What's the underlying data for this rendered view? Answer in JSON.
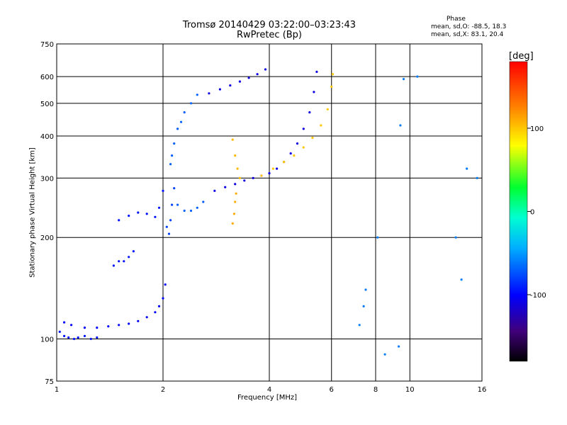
{
  "chart_data": {
    "type": "scatter",
    "title": "Tromsø 20140429 03:22:00–03:23:43",
    "subtitle": "RwPretec (Bp)",
    "xlabel": "Frequency [MHz]",
    "ylabel": "Stationary phase Virtual Height [km]",
    "xscale": "log",
    "yscale": "log",
    "xlim": [
      1,
      16
    ],
    "ylim": [
      75,
      750
    ],
    "xticks": [
      1,
      2,
      4,
      6,
      8,
      10,
      16
    ],
    "yticks": [
      75,
      100,
      200,
      300,
      400,
      500,
      600,
      750
    ],
    "grid": true,
    "phase_stats": {
      "header": "Phase",
      "o_line": "mean, sd,O: -88.5, 18.3",
      "x_line": "mean, sd,X:  83.1, 20.4"
    },
    "colorbar": {
      "label": "[deg]",
      "ticks": [
        100,
        0,
        -100
      ],
      "range": [
        -180,
        180
      ]
    },
    "series": [
      {
        "points": [
          [
            1.02,
            105
          ],
          [
            1.05,
            102
          ],
          [
            1.08,
            101
          ],
          [
            1.12,
            100
          ],
          [
            1.15,
            101
          ],
          [
            1.2,
            102
          ],
          [
            1.25,
            100
          ],
          [
            1.3,
            101
          ]
        ],
        "phase": -95
      },
      {
        "points": [
          [
            1.05,
            112
          ],
          [
            1.1,
            110
          ],
          [
            1.2,
            108
          ],
          [
            1.3,
            108
          ],
          [
            1.4,
            109
          ],
          [
            1.5,
            110
          ],
          [
            1.6,
            111
          ],
          [
            1.7,
            113
          ],
          [
            1.8,
            116
          ],
          [
            1.9,
            120
          ],
          [
            1.95,
            125
          ],
          [
            2.0,
            132
          ],
          [
            2.03,
            145
          ]
        ],
        "phase": -100
      },
      {
        "points": [
          [
            1.45,
            165
          ],
          [
            1.5,
            170
          ],
          [
            1.55,
            170
          ],
          [
            1.6,
            175
          ],
          [
            1.65,
            182
          ]
        ],
        "phase": -95
      },
      {
        "points": [
          [
            1.5,
            225
          ],
          [
            1.6,
            232
          ],
          [
            1.7,
            237
          ],
          [
            1.8,
            235
          ],
          [
            1.9,
            230
          ],
          [
            1.95,
            245
          ],
          [
            2.0,
            275
          ]
        ],
        "phase": -95
      },
      {
        "points": [
          [
            2.05,
            215
          ],
          [
            2.08,
            205
          ],
          [
            2.1,
            225
          ],
          [
            2.12,
            250
          ],
          [
            2.15,
            280
          ]
        ],
        "phase": -80
      },
      {
        "points": [
          [
            2.2,
            250
          ],
          [
            2.3,
            240
          ],
          [
            2.4,
            240
          ],
          [
            2.5,
            245
          ],
          [
            2.6,
            255
          ]
        ],
        "phase": -70
      },
      {
        "points": [
          [
            2.1,
            330
          ],
          [
            2.12,
            350
          ],
          [
            2.15,
            380
          ],
          [
            2.2,
            420
          ],
          [
            2.25,
            440
          ],
          [
            2.3,
            470
          ],
          [
            2.4,
            500
          ],
          [
            2.5,
            530
          ]
        ],
        "phase": -70
      },
      {
        "points": [
          [
            2.7,
            535
          ],
          [
            2.9,
            550
          ],
          [
            3.1,
            565
          ],
          [
            3.3,
            580
          ],
          [
            3.5,
            595
          ],
          [
            3.7,
            610
          ],
          [
            3.9,
            630
          ]
        ],
        "phase": -110
      },
      {
        "points": [
          [
            2.8,
            275
          ],
          [
            3.0,
            282
          ],
          [
            3.2,
            288
          ],
          [
            3.4,
            295
          ],
          [
            3.6,
            300
          ],
          [
            3.8,
            305
          ],
          [
            4.0,
            310
          ],
          [
            4.2,
            320
          ],
          [
            4.4,
            335
          ],
          [
            4.6,
            355
          ],
          [
            4.8,
            380
          ],
          [
            5.0,
            420
          ],
          [
            5.2,
            470
          ],
          [
            5.35,
            540
          ],
          [
            5.45,
            620
          ]
        ],
        "phase": -110
      },
      {
        "points": [
          [
            3.8,
            305
          ],
          [
            4.1,
            320
          ],
          [
            4.4,
            335
          ],
          [
            4.7,
            350
          ],
          [
            5.0,
            370
          ],
          [
            5.3,
            395
          ],
          [
            5.6,
            430
          ],
          [
            5.85,
            480
          ],
          [
            6.0,
            560
          ],
          [
            6.05,
            610
          ]
        ],
        "phase": 100
      },
      {
        "points": [
          [
            3.15,
            390
          ],
          [
            3.2,
            350
          ],
          [
            3.25,
            320
          ],
          [
            3.3,
            300
          ]
        ],
        "phase": 105
      },
      {
        "points": [
          [
            3.15,
            220
          ],
          [
            3.18,
            235
          ],
          [
            3.2,
            255
          ],
          [
            3.22,
            270
          ]
        ],
        "phase": 110
      },
      {
        "points": [
          [
            7.2,
            110
          ],
          [
            7.4,
            125
          ],
          [
            7.5,
            140
          ],
          [
            8.1,
            200
          ],
          [
            8.5,
            90
          ],
          [
            9.3,
            95
          ],
          [
            9.4,
            430
          ],
          [
            9.6,
            590
          ],
          [
            10.5,
            600
          ],
          [
            13.5,
            200
          ],
          [
            14.0,
            150
          ],
          [
            14.5,
            320
          ],
          [
            15.5,
            300
          ]
        ],
        "phase": -60
      }
    ]
  }
}
